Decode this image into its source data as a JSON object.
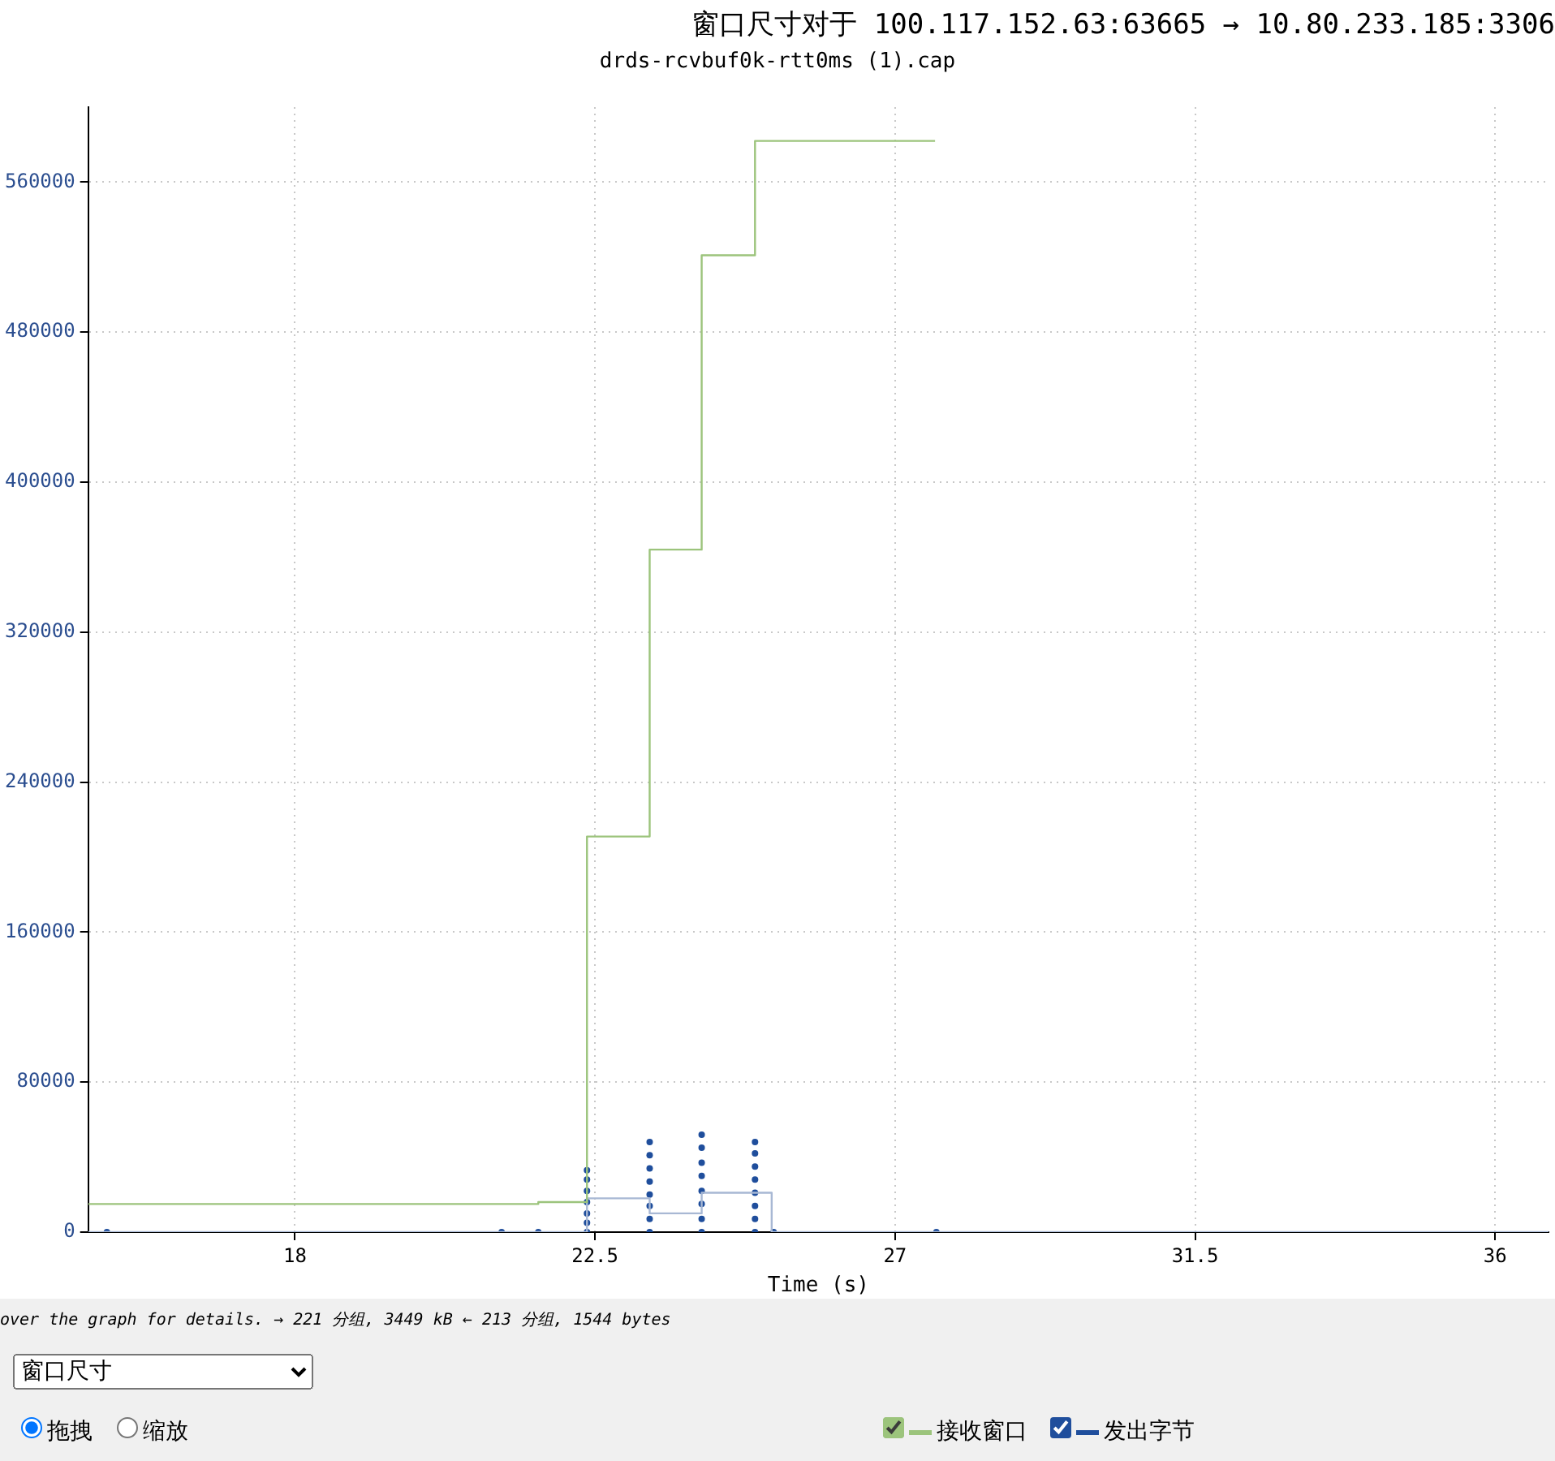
{
  "chart_data": {
    "type": "step",
    "title": "窗口尺寸对于 100.117.152.63:63665 → 10.80.233.185:3306",
    "subtitle": "drds-rcvbuf0k-rtt0ms (1).cap",
    "xlabel": "Time (s)",
    "xlim": [
      14.9,
      36.8
    ],
    "xticks": [
      18,
      22.5,
      27,
      31.5,
      36
    ],
    "ylim": [
      0,
      600000
    ],
    "yticks": [
      0,
      80000,
      160000,
      240000,
      320000,
      400000,
      480000,
      560000
    ],
    "grid": true,
    "legend": "bottom right",
    "line_style": "solid",
    "series": [
      {
        "name": "接收窗口",
        "color": "#9cc47c",
        "x": [
          14.9,
          21.65,
          22.38,
          23.32,
          24.1,
          24.9,
          27.6
        ],
        "values": [
          15000,
          16000,
          211000,
          364000,
          521000,
          582000,
          582000
        ]
      },
      {
        "color": "#a8b8d4",
        "x": [
          14.9,
          22.38,
          23.32,
          24.1,
          25.15,
          36.8
        ],
        "values": [
          0,
          18000,
          10000,
          21000,
          0,
          0
        ]
      },
      {
        "name": "发出字节",
        "type": "scatter",
        "marker": "circle",
        "color": "#1f4e9c",
        "x": [
          15.18,
          21.1,
          21.65,
          22.38,
          22.38,
          22.38,
          22.38,
          22.38,
          22.38,
          22.38,
          23.32,
          23.32,
          23.32,
          23.32,
          23.32,
          23.32,
          23.32,
          23.32,
          24.1,
          24.1,
          24.1,
          24.1,
          24.1,
          24.1,
          24.1,
          24.1,
          24.9,
          24.9,
          24.9,
          24.9,
          24.9,
          24.9,
          24.9,
          24.9,
          25.18,
          27.62
        ],
        "values": [
          0,
          0,
          0,
          0,
          5000,
          10000,
          16000,
          22000,
          28000,
          33000,
          0,
          7000,
          14000,
          20000,
          27000,
          34000,
          41000,
          48000,
          0,
          7000,
          15000,
          22000,
          30000,
          37000,
          45000,
          52000,
          0,
          7000,
          14000,
          21000,
          28000,
          35000,
          42000,
          48000,
          0,
          0
        ]
      }
    ],
    "annotations": [
      "over the graph for details. → 221 分组, 3449 kB ← 213 分组, 1544 bytes",
      "窗口尺寸",
      "拖拽",
      "缩放"
    ]
  }
}
